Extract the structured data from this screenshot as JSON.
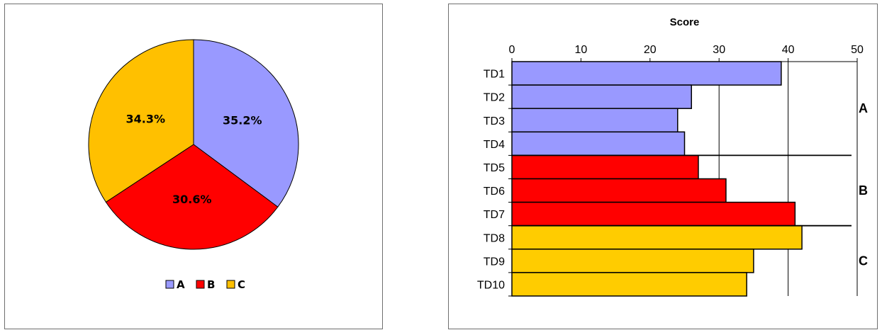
{
  "chart_data": [
    {
      "type": "pie",
      "labels": [
        "A",
        "B",
        "C"
      ],
      "values": [
        35.2,
        30.6,
        34.3
      ],
      "value_labels": [
        "35.2%",
        "30.6%",
        "34.3%"
      ],
      "colors": [
        "#9999ff",
        "#ff0000",
        "#ffc000"
      ],
      "legend": {
        "position": "bottom",
        "entries": [
          "A",
          "B",
          "C"
        ]
      }
    },
    {
      "type": "bar",
      "orientation": "horizontal",
      "categories": [
        "TD1",
        "TD2",
        "TD3",
        "TD4",
        "TD5",
        "TD6",
        "TD7",
        "TD8",
        "TD9",
        "TD10"
      ],
      "values": [
        39,
        26,
        24,
        25,
        27,
        31,
        41,
        42,
        35,
        34
      ],
      "groups": [
        {
          "label": "A",
          "members": [
            "TD1",
            "TD2",
            "TD3",
            "TD4"
          ],
          "color": "#9999ff"
        },
        {
          "label": "B",
          "members": [
            "TD5",
            "TD6",
            "TD7"
          ],
          "color": "#ff0000"
        },
        {
          "label": "C",
          "members": [
            "TD8",
            "TD9",
            "TD10"
          ],
          "color": "#ffcc00"
        }
      ],
      "xlabel": "Score",
      "xaxis_position": "top",
      "xlim": [
        0,
        50
      ],
      "xticks": [
        0,
        10,
        20,
        30,
        40,
        50
      ],
      "tick_labels": [
        "0",
        "10",
        "20",
        "30",
        "40",
        "50"
      ],
      "grid": true
    }
  ]
}
